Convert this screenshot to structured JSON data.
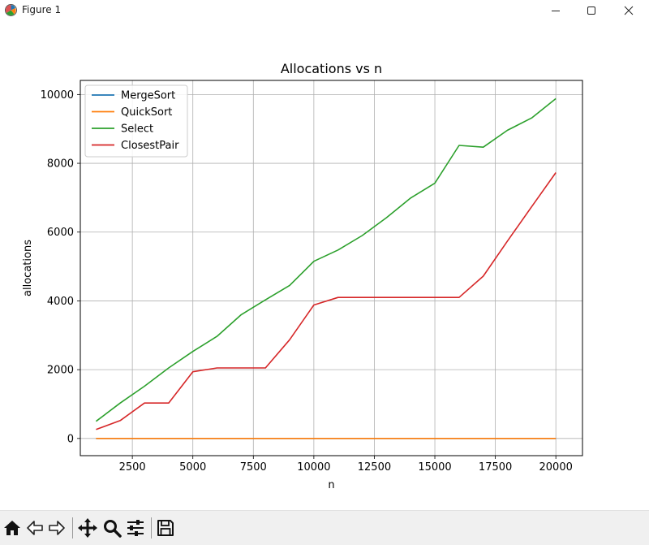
{
  "window": {
    "title": "Figure 1",
    "icons": [
      "matplotlib-icon",
      "minimize-icon",
      "maximize-icon",
      "close-icon"
    ]
  },
  "toolbar": {
    "tools": [
      {
        "name": "home",
        "icon": "home-icon"
      },
      {
        "name": "back",
        "icon": "back-arrow-icon"
      },
      {
        "name": "forward",
        "icon": "forward-arrow-icon"
      },
      {
        "name": "pan",
        "icon": "pan-icon"
      },
      {
        "name": "zoom",
        "icon": "zoom-icon"
      },
      {
        "name": "configure-subplots",
        "icon": "sliders-icon"
      },
      {
        "name": "save",
        "icon": "save-icon"
      }
    ]
  },
  "chart_data": {
    "type": "line",
    "title": "Allocations vs n",
    "xlabel": "n",
    "ylabel": "allocations",
    "xlim": [
      350,
      21100
    ],
    "ylim": [
      -500,
      10410
    ],
    "xticks": [
      2500,
      5000,
      7500,
      10000,
      12500,
      15000,
      17500,
      20000
    ],
    "yticks": [
      0,
      2000,
      4000,
      6000,
      8000,
      10000
    ],
    "grid": true,
    "legend_position": "upper-left",
    "x": [
      1000,
      2000,
      3000,
      4000,
      5000,
      6000,
      7000,
      8000,
      9000,
      10000,
      11000,
      12000,
      13000,
      14000,
      15000,
      16000,
      17000,
      18000,
      19000,
      20000
    ],
    "series": [
      {
        "name": "MergeSort",
        "color": "#1f77b4",
        "values": [
          0,
          0,
          0,
          0,
          0,
          0,
          0,
          0,
          0,
          0,
          0,
          0,
          0,
          0,
          0,
          0,
          0,
          0,
          0,
          0
        ]
      },
      {
        "name": "QuickSort",
        "color": "#ff7f0e",
        "values": [
          0,
          0,
          0,
          0,
          0,
          0,
          0,
          0,
          0,
          0,
          0,
          0,
          0,
          0,
          0,
          0,
          0,
          0,
          0,
          0
        ]
      },
      {
        "name": "Select",
        "color": "#2ca02c",
        "values": [
          500,
          1030,
          1520,
          2050,
          2530,
          2970,
          3600,
          4030,
          4450,
          5150,
          5480,
          5900,
          6420,
          6990,
          7420,
          8520,
          8470,
          8960,
          9320,
          9880
        ]
      },
      {
        "name": "ClosestPair",
        "color": "#d62728",
        "values": [
          260,
          520,
          1030,
          1030,
          1940,
          2050,
          2050,
          2050,
          2870,
          3880,
          4100,
          4100,
          4100,
          4100,
          4100,
          4100,
          4720,
          5740,
          6740,
          7730
        ]
      }
    ]
  }
}
